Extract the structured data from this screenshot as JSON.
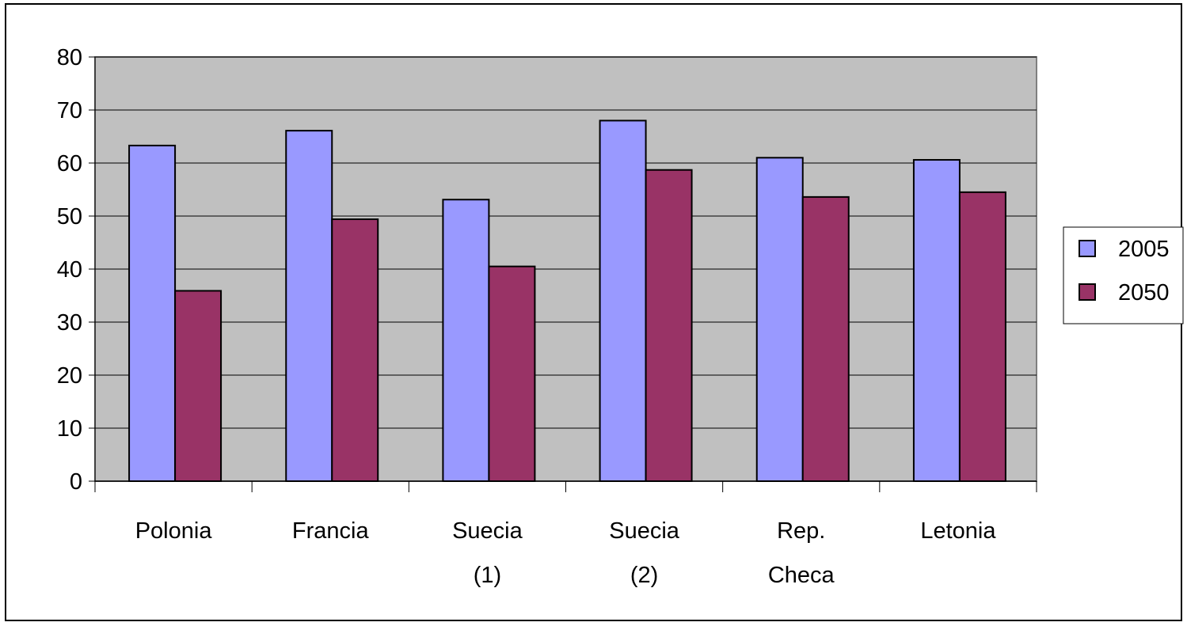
{
  "chart_data": {
    "type": "bar",
    "title": "",
    "xlabel": "",
    "ylabel": "",
    "categories": [
      [
        "Polonia"
      ],
      [
        "Francia"
      ],
      [
        "Suecia",
        "(1)"
      ],
      [
        "Suecia",
        "(2)"
      ],
      [
        "Rep.",
        "Checa"
      ],
      [
        "Letonia"
      ]
    ],
    "series": [
      {
        "name": "2005",
        "color": "#9999ff",
        "values": [
          63.3,
          66.1,
          53.1,
          68.0,
          61.0,
          60.6
        ]
      },
      {
        "name": "2050",
        "color": "#993366",
        "values": [
          35.9,
          49.4,
          40.5,
          58.7,
          53.6,
          54.5
        ]
      }
    ],
    "ylim": [
      0,
      80
    ],
    "yticks": [
      "0",
      "10",
      "20",
      "30",
      "40",
      "50",
      "60",
      "70",
      "80"
    ],
    "grid": true,
    "plot_background": "#c0c0c0",
    "legend_position": "right"
  }
}
